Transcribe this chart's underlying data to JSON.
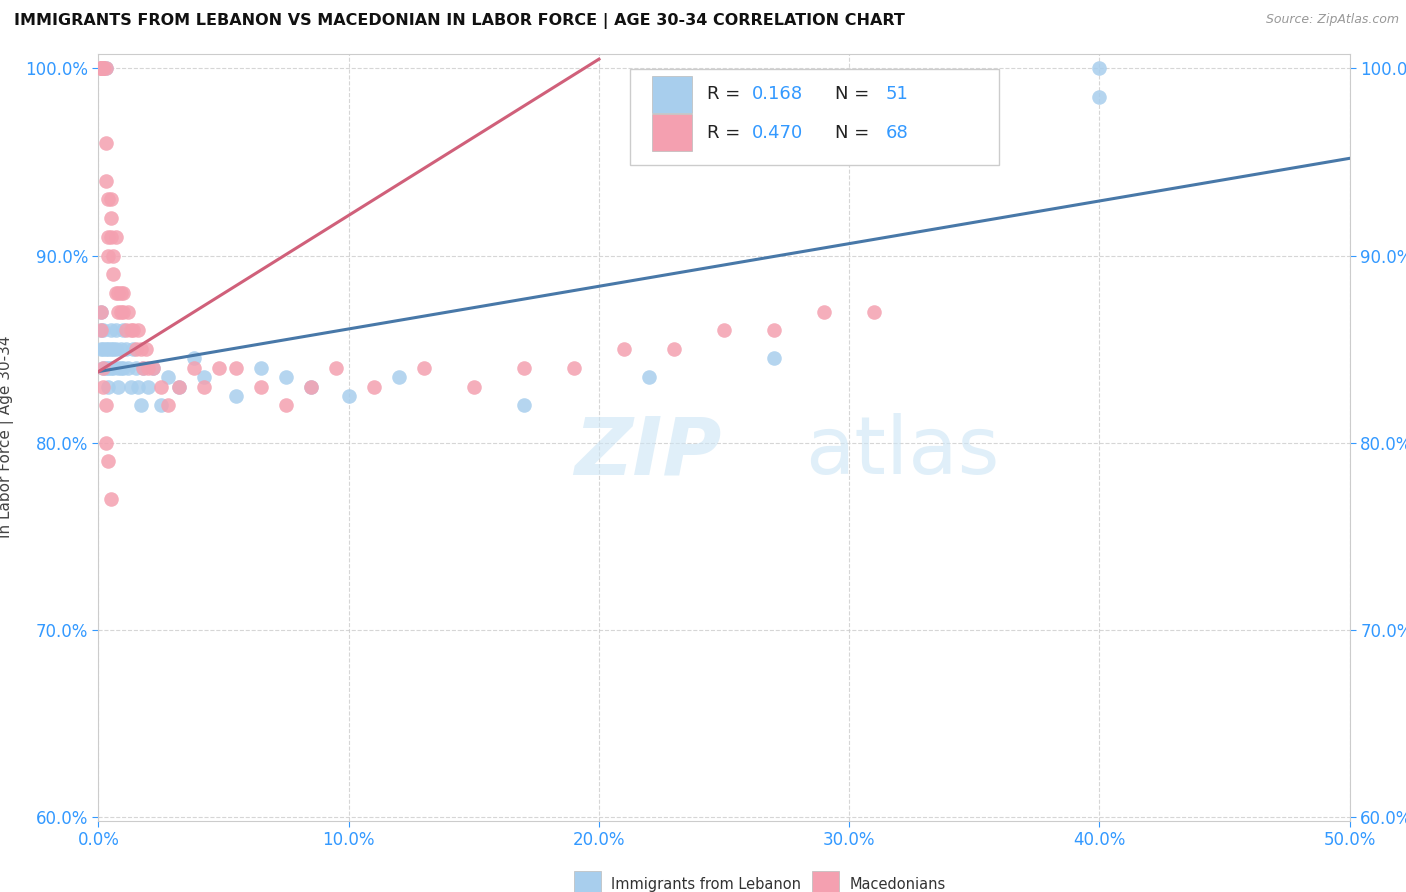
{
  "title": "IMMIGRANTS FROM LEBANON VS MACEDONIAN IN LABOR FORCE | AGE 30-34 CORRELATION CHART",
  "source": "Source: ZipAtlas.com",
  "ylabel": "In Labor Force | Age 30-34",
  "xmin": 0.0,
  "xmax": 0.5,
  "ymin": 0.598,
  "ymax": 1.008,
  "blue_R": 0.168,
  "blue_N": 51,
  "pink_R": 0.47,
  "pink_N": 68,
  "blue_color": "#A8CEED",
  "pink_color": "#F4A0B0",
  "blue_line_color": "#4878A8",
  "pink_line_color": "#D0607A",
  "blue_scatter_x": [
    0.001,
    0.001,
    0.001,
    0.002,
    0.002,
    0.002,
    0.003,
    0.003,
    0.003,
    0.004,
    0.004,
    0.004,
    0.005,
    0.005,
    0.005,
    0.006,
    0.006,
    0.007,
    0.007,
    0.008,
    0.008,
    0.009,
    0.009,
    0.01,
    0.01,
    0.011,
    0.012,
    0.013,
    0.014,
    0.015,
    0.016,
    0.017,
    0.018,
    0.02,
    0.022,
    0.025,
    0.028,
    0.032,
    0.038,
    0.042,
    0.055,
    0.065,
    0.075,
    0.085,
    0.1,
    0.12,
    0.17,
    0.22,
    0.27,
    0.4,
    0.4
  ],
  "blue_scatter_y": [
    0.87,
    0.86,
    0.85,
    0.84,
    0.86,
    0.85,
    0.84,
    0.85,
    1.0,
    0.85,
    0.84,
    0.83,
    0.86,
    0.85,
    0.84,
    0.85,
    0.84,
    0.86,
    0.85,
    0.84,
    0.83,
    0.85,
    0.84,
    0.86,
    0.84,
    0.85,
    0.84,
    0.83,
    0.85,
    0.84,
    0.83,
    0.82,
    0.84,
    0.83,
    0.84,
    0.82,
    0.835,
    0.83,
    0.845,
    0.835,
    0.825,
    0.84,
    0.835,
    0.83,
    0.825,
    0.835,
    0.82,
    0.835,
    0.845,
    0.985,
    1.0
  ],
  "pink_scatter_x": [
    0.001,
    0.001,
    0.001,
    0.001,
    0.002,
    0.002,
    0.002,
    0.002,
    0.003,
    0.003,
    0.003,
    0.004,
    0.004,
    0.004,
    0.005,
    0.005,
    0.005,
    0.006,
    0.006,
    0.007,
    0.007,
    0.008,
    0.008,
    0.009,
    0.009,
    0.01,
    0.01,
    0.011,
    0.012,
    0.013,
    0.014,
    0.015,
    0.016,
    0.017,
    0.018,
    0.019,
    0.02,
    0.022,
    0.025,
    0.028,
    0.032,
    0.038,
    0.042,
    0.048,
    0.055,
    0.065,
    0.075,
    0.085,
    0.095,
    0.11,
    0.13,
    0.15,
    0.17,
    0.19,
    0.21,
    0.23,
    0.25,
    0.27,
    0.29,
    0.31,
    0.001,
    0.001,
    0.002,
    0.002,
    0.003,
    0.003,
    0.004,
    0.005
  ],
  "pink_scatter_y": [
    1.0,
    1.0,
    1.0,
    1.0,
    1.0,
    1.0,
    1.0,
    1.0,
    1.0,
    0.96,
    0.94,
    0.93,
    0.91,
    0.9,
    0.93,
    0.92,
    0.91,
    0.9,
    0.89,
    0.91,
    0.88,
    0.88,
    0.87,
    0.88,
    0.87,
    0.88,
    0.87,
    0.86,
    0.87,
    0.86,
    0.86,
    0.85,
    0.86,
    0.85,
    0.84,
    0.85,
    0.84,
    0.84,
    0.83,
    0.82,
    0.83,
    0.84,
    0.83,
    0.84,
    0.84,
    0.83,
    0.82,
    0.83,
    0.84,
    0.83,
    0.84,
    0.83,
    0.84,
    0.84,
    0.85,
    0.85,
    0.86,
    0.86,
    0.87,
    0.87,
    0.87,
    0.86,
    0.84,
    0.83,
    0.82,
    0.8,
    0.79,
    0.77
  ],
  "blue_line_x0": 0.0,
  "blue_line_x1": 0.5,
  "blue_line_y0": 0.838,
  "blue_line_y1": 0.952,
  "pink_line_x0": 0.0,
  "pink_line_x1": 0.2,
  "pink_line_y0": 0.838,
  "pink_line_y1": 1.005
}
